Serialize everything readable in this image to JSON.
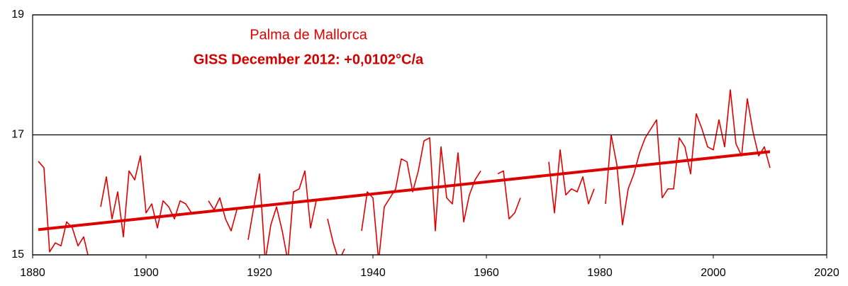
{
  "chart_data": {
    "type": "line",
    "title": "Palma de Mallorca",
    "subtitle": "GISS December 2012: +0,0102°C/a",
    "series": [
      {
        "color": "#e00000",
        "x": [
          1881,
          1882,
          1883,
          1884,
          1885,
          1886,
          1887,
          1888,
          1889,
          1890,
          1891,
          1892,
          1893,
          1894,
          1895,
          1896,
          1897,
          1898,
          1899,
          1900,
          1901,
          1902,
          1903,
          1904,
          1905,
          1906,
          1907,
          1908,
          1909,
          1910,
          1911,
          1912,
          1913,
          1914,
          1915,
          1916,
          1917,
          1918,
          1919,
          1920,
          1921,
          1922,
          1923,
          1924,
          1925,
          1926,
          1927,
          1928,
          1929,
          1930,
          1931,
          1932,
          1933,
          1934,
          1935,
          1936,
          1937,
          1938,
          1939,
          1940,
          1941,
          1942,
          1943,
          1944,
          1945,
          1946,
          1947,
          1948,
          1949,
          1950,
          1951,
          1952,
          1953,
          1954,
          1955,
          1956,
          1957,
          1958,
          1959,
          1960,
          1961,
          1962,
          1963,
          1964,
          1965,
          1966,
          1967,
          1968,
          1969,
          1970,
          1971,
          1972,
          1973,
          1974,
          1975,
          1976,
          1977,
          1978,
          1979,
          1980,
          1981,
          1982,
          1983,
          1984,
          1985,
          1986,
          1987,
          1988,
          1989,
          1990,
          1991,
          1992,
          1993,
          1994,
          1995,
          1996,
          1997,
          1998,
          1999,
          2000,
          2001,
          2002,
          2003,
          2004,
          2005,
          2006,
          2007,
          2008,
          2009,
          2010
        ],
        "values": [
          16.56,
          16.45,
          15.05,
          15.2,
          15.15,
          15.55,
          15.45,
          15.15,
          15.3,
          14.9,
          null,
          15.8,
          16.3,
          15.6,
          16.05,
          15.3,
          16.4,
          16.25,
          16.65,
          15.7,
          15.85,
          15.45,
          15.9,
          15.8,
          15.6,
          15.9,
          15.85,
          15.7,
          null,
          null,
          15.9,
          15.75,
          15.95,
          15.6,
          15.4,
          15.75,
          null,
          15.25,
          15.8,
          16.35,
          14.9,
          15.5,
          15.8,
          15.4,
          14.9,
          16.05,
          16.1,
          16.4,
          15.45,
          15.9,
          null,
          15.6,
          15.2,
          14.9,
          15.1,
          null,
          null,
          15.4,
          16.05,
          15.95,
          14.9,
          15.8,
          15.95,
          16.1,
          16.6,
          16.55,
          16.05,
          16.4,
          16.9,
          16.95,
          15.4,
          16.8,
          15.95,
          15.85,
          16.7,
          15.55,
          16.0,
          16.25,
          16.4,
          null,
          null,
          16.35,
          16.4,
          15.6,
          15.7,
          15.95,
          null,
          null,
          null,
          null,
          16.55,
          15.7,
          16.75,
          16.0,
          16.1,
          16.05,
          16.3,
          15.85,
          16.1,
          null,
          15.85,
          17.0,
          16.5,
          15.5,
          16.1,
          16.35,
          16.7,
          16.95,
          17.1,
          17.25,
          15.95,
          16.1,
          16.1,
          16.95,
          16.8,
          16.35,
          17.35,
          17.1,
          16.8,
          16.75,
          17.25,
          16.8,
          17.75,
          16.85,
          16.65,
          17.6,
          17.05,
          16.65,
          16.8,
          16.45
        ]
      },
      {
        "color": "#dd0000",
        "x": [
          1881,
          2010
        ],
        "values": [
          15.42,
          16.72
        ]
      }
    ],
    "xlim": [
      1880,
      2020
    ],
    "xticks": [
      1880,
      1900,
      1920,
      1940,
      1960,
      1980,
      2000,
      2020
    ],
    "ylim": [
      15,
      19
    ],
    "yticks": [
      15,
      17,
      19
    ],
    "grid": true
  }
}
